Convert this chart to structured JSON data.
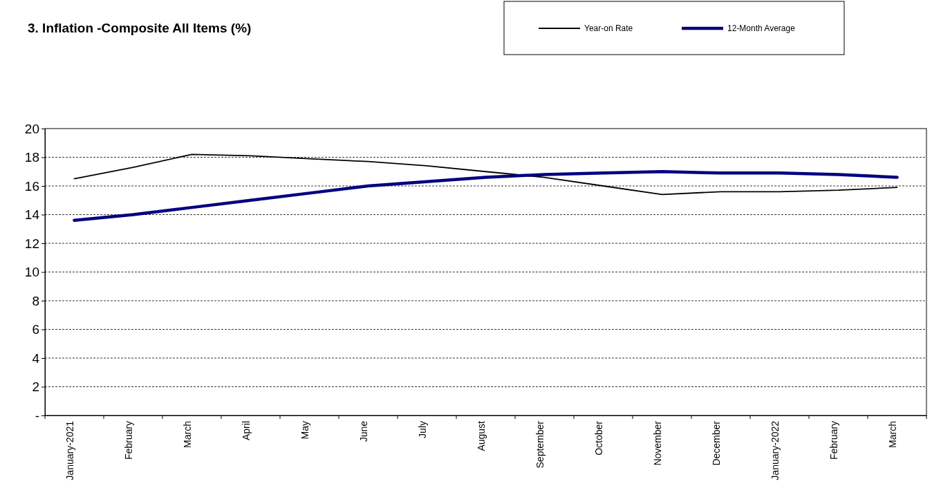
{
  "chart_data": {
    "type": "line",
    "title": "3. Inflation -Composite All Items (%)",
    "categories": [
      "January-2021",
      "February",
      "March",
      "April",
      "May",
      "June",
      "July",
      "August",
      "September",
      "October",
      "November",
      "December",
      "January-2022",
      "February",
      "March"
    ],
    "series": [
      {
        "name": "Year-on Rate",
        "color": "#000000",
        "values": [
          16.5,
          17.3,
          18.2,
          18.1,
          17.9,
          17.7,
          17.4,
          17.0,
          16.6,
          16.0,
          15.4,
          15.6,
          15.6,
          15.7,
          15.9
        ]
      },
      {
        "name": "12-Month Average",
        "color": "#000080",
        "values": [
          13.6,
          14.0,
          14.5,
          15.0,
          15.5,
          16.0,
          16.3,
          16.6,
          16.8,
          16.9,
          17.0,
          16.9,
          16.9,
          16.8,
          16.6
        ]
      }
    ],
    "ylim": [
      0,
      20
    ],
    "yticks": [
      {
        "value": 0,
        "label": "-"
      },
      2,
      4,
      6,
      8,
      10,
      12,
      14,
      16,
      18,
      20
    ],
    "grid": "y",
    "legend": "top right",
    "marker": "none",
    "line_style": "solid"
  }
}
